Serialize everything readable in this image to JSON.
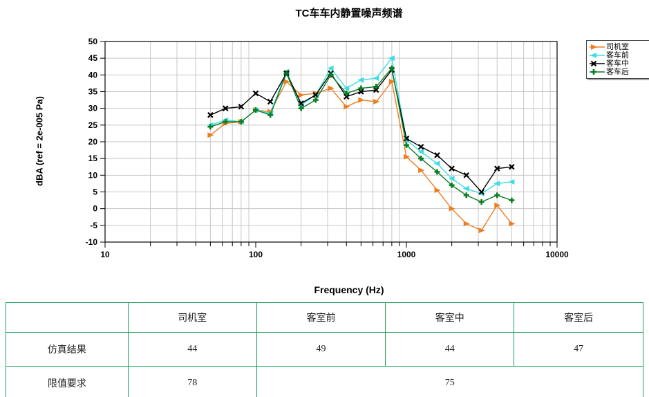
{
  "title": "TC车车内静置噪声频谱",
  "chart_data": {
    "type": "line",
    "xscale": "log",
    "xlabel": "Frequency (Hz)",
    "ylabel": "dBA (ref = 2e-005 Pa)",
    "xlim": [
      10,
      10000
    ],
    "ylim": [
      -10,
      50
    ],
    "xticks": [
      10,
      100,
      1000,
      10000
    ],
    "xtick_labels": [
      "10",
      "100",
      "1000",
      "10000"
    ],
    "yticks": [
      -10,
      -5,
      0,
      5,
      10,
      15,
      20,
      25,
      30,
      35,
      40,
      45,
      50
    ],
    "grid": true,
    "grid_color": "#c6c6c6",
    "legend_position": "top-right",
    "x": [
      50,
      63,
      80,
      100,
      125,
      160,
      200,
      250,
      315,
      400,
      500,
      630,
      800,
      1000,
      1250,
      1600,
      2000,
      2500,
      3150,
      4000,
      5000
    ],
    "series": [
      {
        "name": "司机室",
        "color": "#f07c1e",
        "marker": "triangle-right",
        "values": [
          22,
          25.5,
          26,
          29.5,
          29,
          38,
          34,
          34.5,
          36,
          30.5,
          32.5,
          32,
          38,
          15.5,
          11.5,
          5.5,
          0,
          -4.5,
          -6.5,
          1,
          -4.5
        ]
      },
      {
        "name": "客车前",
        "color": "#3edde4",
        "marker": "triangle-left",
        "values": [
          25,
          26.5,
          26,
          29.5,
          28.5,
          41,
          31,
          34,
          42,
          36,
          38.5,
          39,
          45,
          20.5,
          17,
          13.5,
          9,
          6,
          4.5,
          7.5,
          8
        ]
      },
      {
        "name": "客车中",
        "color": "#000000",
        "marker": "x",
        "values": [
          28,
          30,
          30.5,
          34.5,
          32,
          40.5,
          31.5,
          34,
          40.5,
          33.5,
          35,
          35.5,
          41.5,
          21,
          18.5,
          16,
          12,
          10,
          5,
          12,
          12.5
        ]
      },
      {
        "name": "客车后",
        "color": "#0a7d22",
        "marker": "plus",
        "values": [
          24.5,
          26,
          26,
          29.5,
          28,
          40.5,
          30,
          32.5,
          40,
          34.5,
          36,
          36.5,
          42,
          19,
          15,
          11,
          7,
          4,
          2,
          4,
          2.5
        ]
      }
    ]
  },
  "table": {
    "border_color": "#1ea05a",
    "columns": [
      "",
      "司机室",
      "客室前",
      "客室中",
      "客室后"
    ],
    "rows": [
      {
        "label": "仿真结果",
        "values": [
          "44",
          "49",
          "44",
          "47"
        ]
      },
      {
        "label": "限值要求",
        "driver_value": "78",
        "cabin_value": "75"
      }
    ]
  }
}
